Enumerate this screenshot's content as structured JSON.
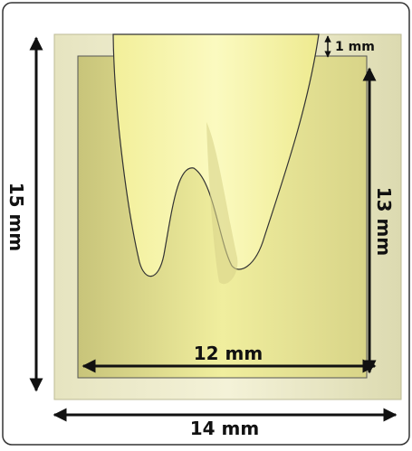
{
  "dimensions": {
    "top_gap": "1 mm",
    "outer_height": "15 mm",
    "inner_height": "13 mm",
    "inner_width": "12 mm",
    "outer_width": "14 mm"
  }
}
